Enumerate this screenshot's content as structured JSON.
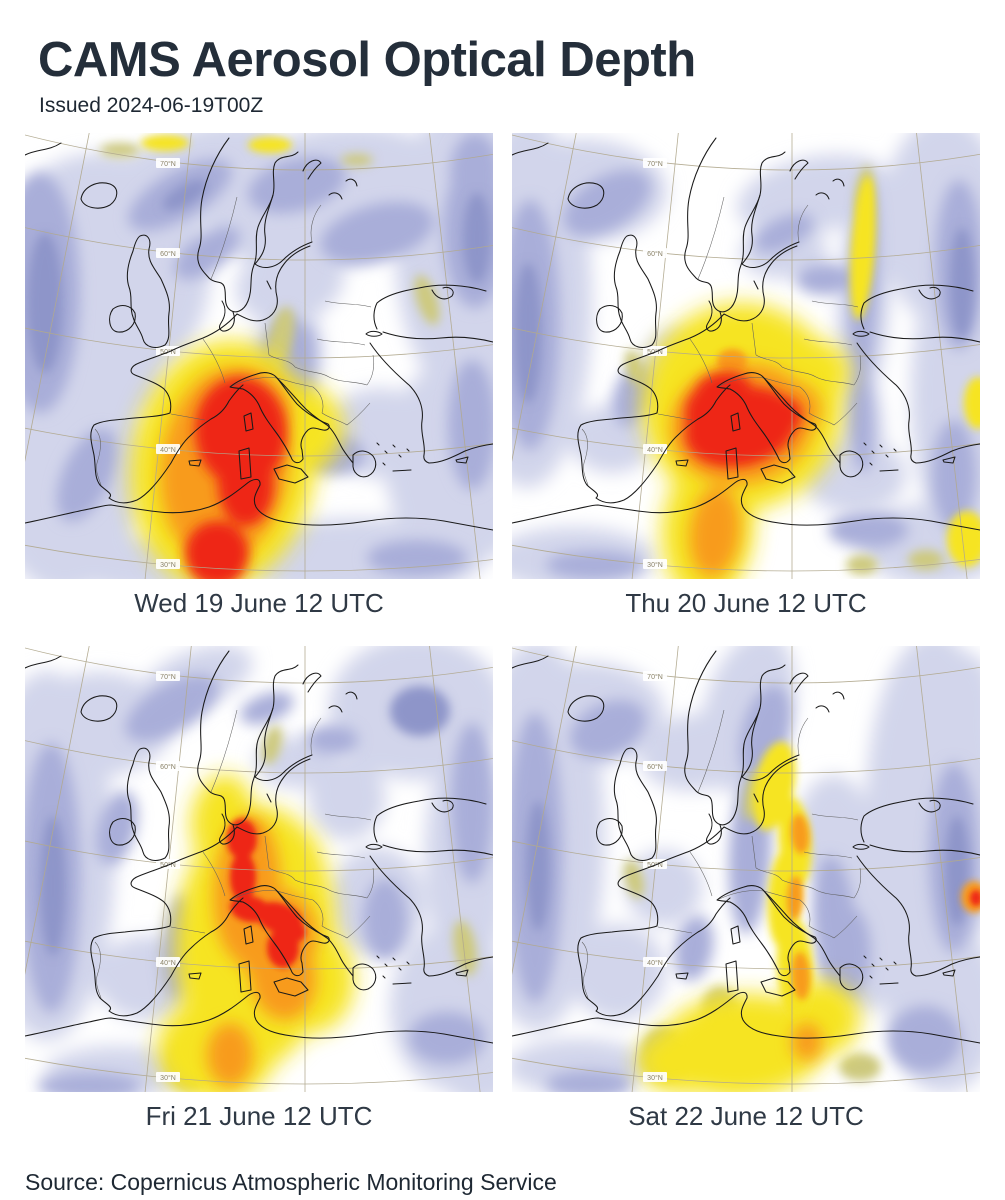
{
  "header": {
    "title": "CAMS Aerosol Optical Depth",
    "issued": "Issued 2024-06-19T00Z"
  },
  "panels": [
    {
      "caption": "Wed 19 June 12 UTC"
    },
    {
      "caption": "Thu 20 June 12 UTC"
    },
    {
      "caption": "Fri 21 June 12 UTC"
    },
    {
      "caption": "Sat 22 June 12 UTC"
    }
  ],
  "footer": {
    "source": "Source: Copernicus Atmospheric Monitoring Service"
  },
  "map": {
    "graticule_labels": [
      "70°N",
      "60°N",
      "50°N",
      "40°N",
      "30°N"
    ],
    "palette": {
      "aod_low_1": "#d2d5eb",
      "aod_low_2": "#a9aed9",
      "aod_low_3": "#8e95c9",
      "aod_olive": "#cdc97e",
      "aod_yellow": "#f6e423",
      "aod_orange": "#f89b1b",
      "aod_red": "#ee2719",
      "coastline": "#1a1a1a",
      "border": "#5f5f5f",
      "graticule": "#b1a98f",
      "graticule_label": "#8a8268"
    }
  }
}
